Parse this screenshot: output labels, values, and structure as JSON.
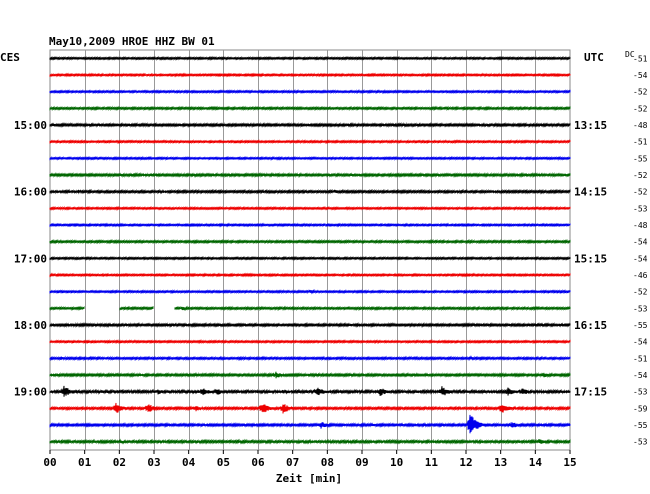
{
  "chart_data": {
    "type": "line",
    "title": "May10,2009   HROE HHZ BW 01",
    "left_label": "CES",
    "right_label": "UTC",
    "dc_label": "DC",
    "xlabel": "Zeit [min]",
    "xlim": [
      0,
      15
    ],
    "x_ticks": [
      "00",
      "01",
      "02",
      "03",
      "04",
      "05",
      "06",
      "07",
      "08",
      "09",
      "10",
      "11",
      "12",
      "13",
      "14",
      "15"
    ],
    "grid": true,
    "line_colors": [
      "#000000",
      "#ee0000",
      "#0000ee",
      "#006600"
    ],
    "local_time_labels": [
      {
        "row": 4,
        "text": "15:00"
      },
      {
        "row": 8,
        "text": "16:00"
      },
      {
        "row": 12,
        "text": "17:00"
      },
      {
        "row": 16,
        "text": "18:00"
      },
      {
        "row": 20,
        "text": "19:00"
      }
    ],
    "utc_labels": [
      {
        "row": 4,
        "text": "13:15"
      },
      {
        "row": 8,
        "text": "14:15"
      },
      {
        "row": 12,
        "text": "15:15"
      },
      {
        "row": 16,
        "text": "16:15"
      },
      {
        "row": 20,
        "text": "17:15"
      }
    ],
    "dc_offsets": [
      "-51",
      "-54",
      "-52",
      "-52",
      "-48",
      "-51",
      "-55",
      "-52",
      "-52",
      "-53",
      "-48",
      "-54",
      "-54",
      "-46",
      "-52",
      "-53",
      "-55",
      "-54",
      "-51",
      "-54",
      "-53",
      "-59",
      "-55",
      "-53"
    ],
    "traces": [
      {
        "row": 0,
        "amplitude": 0.8,
        "events": []
      },
      {
        "row": 1,
        "amplitude": 0.8,
        "events": []
      },
      {
        "row": 2,
        "amplitude": 0.8,
        "events": []
      },
      {
        "row": 3,
        "amplitude": 0.9,
        "events": []
      },
      {
        "row": 4,
        "amplitude": 1.0,
        "events": []
      },
      {
        "row": 5,
        "amplitude": 0.8,
        "events": []
      },
      {
        "row": 6,
        "amplitude": 0.8,
        "events": []
      },
      {
        "row": 7,
        "amplitude": 1.0,
        "events": []
      },
      {
        "row": 8,
        "amplitude": 1.0,
        "events": [
          {
            "t": 0.8,
            "amp": 2
          },
          {
            "t": 8.2,
            "amp": 2
          }
        ]
      },
      {
        "row": 9,
        "amplitude": 0.8,
        "events": []
      },
      {
        "row": 10,
        "amplitude": 0.8,
        "events": []
      },
      {
        "row": 11,
        "amplitude": 0.9,
        "events": []
      },
      {
        "row": 12,
        "amplitude": 0.8,
        "events": []
      },
      {
        "row": 13,
        "amplitude": 0.8,
        "events": []
      },
      {
        "row": 14,
        "amplitude": 0.8,
        "events": [
          {
            "t": 7.5,
            "amp": 2
          }
        ]
      },
      {
        "row": 15,
        "amplitude": 0.9,
        "events": [
          {
            "t": 3.8,
            "amp": 2
          }
        ],
        "gaps": [
          [
            1.0,
            2.0
          ],
          [
            3.0,
            3.6
          ]
        ]
      },
      {
        "row": 16,
        "amplitude": 1.0,
        "events": []
      },
      {
        "row": 17,
        "amplitude": 0.8,
        "events": []
      },
      {
        "row": 18,
        "amplitude": 0.9,
        "events": [
          {
            "t": 0.3,
            "amp": 2
          },
          {
            "t": 12.1,
            "amp": 2
          }
        ]
      },
      {
        "row": 19,
        "amplitude": 1.0,
        "events": [
          {
            "t": 6.5,
            "amp": 4
          },
          {
            "t": 14.2,
            "amp": 3
          }
        ]
      },
      {
        "row": 20,
        "amplitude": 1.2,
        "events": [
          {
            "t": 0.4,
            "amp": 6
          },
          {
            "t": 3.1,
            "amp": 3
          },
          {
            "t": 4.4,
            "amp": 5
          },
          {
            "t": 4.8,
            "amp": 4
          },
          {
            "t": 6.7,
            "amp": 3
          },
          {
            "t": 7.7,
            "amp": 5
          },
          {
            "t": 9.5,
            "amp": 5
          },
          {
            "t": 11.3,
            "amp": 6
          },
          {
            "t": 13.2,
            "amp": 5
          },
          {
            "t": 13.6,
            "amp": 4
          }
        ]
      },
      {
        "row": 21,
        "amplitude": 1.0,
        "events": [
          {
            "t": 1.9,
            "amp": 6
          },
          {
            "t": 2.8,
            "amp": 6
          },
          {
            "t": 4.2,
            "amp": 3
          },
          {
            "t": 6.1,
            "amp": 7
          },
          {
            "t": 6.7,
            "amp": 6
          },
          {
            "t": 13.0,
            "amp": 6
          }
        ]
      },
      {
        "row": 22,
        "amplitude": 1.0,
        "events": [
          {
            "t": 7.8,
            "amp": 4
          },
          {
            "t": 12.1,
            "amp": 13
          },
          {
            "t": 13.3,
            "amp": 4
          }
        ]
      },
      {
        "row": 23,
        "amplitude": 1.1,
        "events": [
          {
            "t": 2.0,
            "amp": 2
          },
          {
            "t": 14.1,
            "amp": 3
          }
        ]
      }
    ]
  }
}
